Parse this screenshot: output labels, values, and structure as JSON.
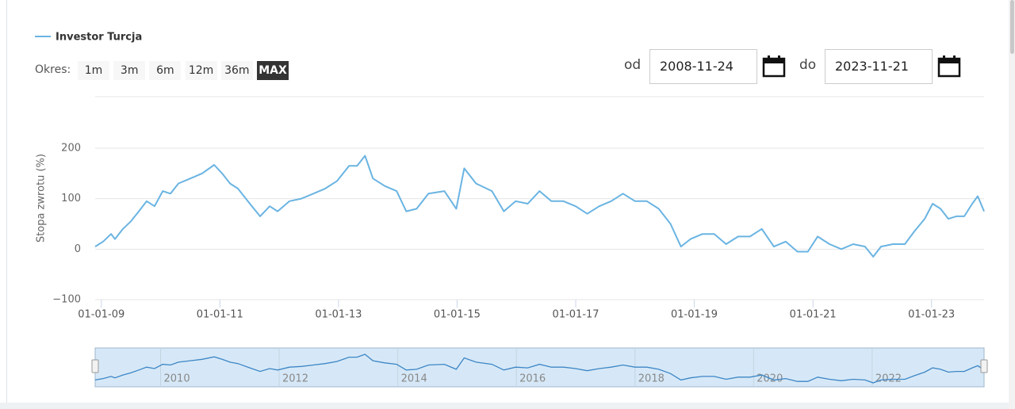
{
  "chart_data": {
    "type": "line",
    "legend": "Investor Turcja",
    "y_axis_title": "Stopa zwrotu (%)",
    "range_selector": {
      "label": "Okres:",
      "buttons": [
        "1m",
        "3m",
        "6m",
        "12m",
        "36m",
        "MAX"
      ],
      "selected": 5
    },
    "date_inputs": {
      "from_label": "od",
      "from": "2008-11-24",
      "to_label": "do",
      "to": "2023-11-21"
    },
    "xlim": [
      "2008-11-24",
      "2023-11-21"
    ],
    "xticks": [
      {
        "value": "2009-01-01",
        "label": "01-01-09"
      },
      {
        "value": "2011-01-01",
        "label": "01-01-11"
      },
      {
        "value": "2013-01-01",
        "label": "01-01-13"
      },
      {
        "value": "2015-01-01",
        "label": "01-01-15"
      },
      {
        "value": "2017-01-01",
        "label": "01-01-17"
      },
      {
        "value": "2019-01-01",
        "label": "01-01-19"
      },
      {
        "value": "2021-01-01",
        "label": "01-01-21"
      },
      {
        "value": "2023-01-01",
        "label": "01-01-23"
      }
    ],
    "ylim": [
      -100,
      302
    ],
    "yticks": [
      {
        "value": -100,
        "label": "−100"
      },
      0,
      100,
      200
    ],
    "grid": true,
    "navigator_xticks": [
      {
        "value": "2010-01-01",
        "label": "2010"
      },
      {
        "value": "2012-01-01",
        "label": "2012"
      },
      {
        "value": "2014-01-01",
        "label": "2014"
      },
      {
        "value": "2016-01-01",
        "label": "2016"
      },
      {
        "value": "2018-01-01",
        "label": "2018"
      },
      {
        "value": "2020-01-01",
        "label": "2020"
      },
      {
        "value": "2022-01-01",
        "label": "2022"
      }
    ],
    "x": [
      "2008-11-24",
      "2009-01-12",
      "2009-03-02",
      "2009-03-26",
      "2009-05-14",
      "2009-07-02",
      "2009-08-20",
      "2009-10-07",
      "2009-11-25",
      "2010-01-14",
      "2010-03-03",
      "2010-04-21",
      "2010-07-03",
      "2010-09-14",
      "2010-11-27",
      "2011-01-15",
      "2011-03-05",
      "2011-04-22",
      "2011-07-05",
      "2011-09-06",
      "2011-11-04",
      "2011-12-23",
      "2012-03-05",
      "2012-05-17",
      "2012-07-30",
      "2012-10-11",
      "2012-12-23",
      "2013-03-07",
      "2013-04-25",
      "2013-06-13",
      "2013-08-01",
      "2013-10-13",
      "2013-12-25",
      "2014-02-22",
      "2014-04-27",
      "2014-07-09",
      "2014-10-15",
      "2014-12-27",
      "2015-02-14",
      "2015-04-28",
      "2015-08-04",
      "2015-10-16",
      "2015-12-28",
      "2016-03-11",
      "2016-05-23",
      "2016-08-04",
      "2016-10-17",
      "2016-12-31",
      "2017-03-13",
      "2017-05-26",
      "2017-08-07",
      "2017-10-19",
      "2018-01-01",
      "2018-03-15",
      "2018-05-27",
      "2018-08-08",
      "2018-10-11",
      "2018-12-09",
      "2019-02-20",
      "2019-05-04",
      "2019-07-16",
      "2019-09-28",
      "2019-12-10",
      "2020-02-21",
      "2020-05-05",
      "2020-07-17",
      "2020-09-28",
      "2020-12-01",
      "2021-01-30",
      "2021-04-13",
      "2021-06-25",
      "2021-09-06",
      "2021-11-18",
      "2022-01-07",
      "2022-02-24",
      "2022-05-09",
      "2022-07-21",
      "2022-09-17",
      "2022-11-20",
      "2023-01-08",
      "2023-02-26",
      "2023-04-15",
      "2023-06-03",
      "2023-07-22",
      "2023-09-09",
      "2023-10-13",
      "2023-11-21"
    ],
    "series": [
      {
        "name": "Investor Turcja",
        "color": "#6ab4e2",
        "values": [
          5,
          15,
          30,
          20,
          40,
          55,
          75,
          95,
          85,
          115,
          110,
          130,
          140,
          150,
          167,
          150,
          130,
          120,
          90,
          65,
          85,
          75,
          95,
          100,
          110,
          120,
          135,
          165,
          165,
          185,
          140,
          125,
          115,
          75,
          80,
          110,
          115,
          80,
          160,
          130,
          115,
          75,
          95,
          90,
          115,
          95,
          95,
          85,
          70,
          85,
          95,
          110,
          95,
          95,
          80,
          50,
          5,
          20,
          30,
          30,
          10,
          25,
          25,
          40,
          5,
          15,
          -5,
          -5,
          25,
          10,
          0,
          10,
          5,
          -15,
          5,
          10,
          10,
          35,
          60,
          90,
          80,
          60,
          65,
          65,
          90,
          105,
          75
        ]
      }
    ]
  }
}
